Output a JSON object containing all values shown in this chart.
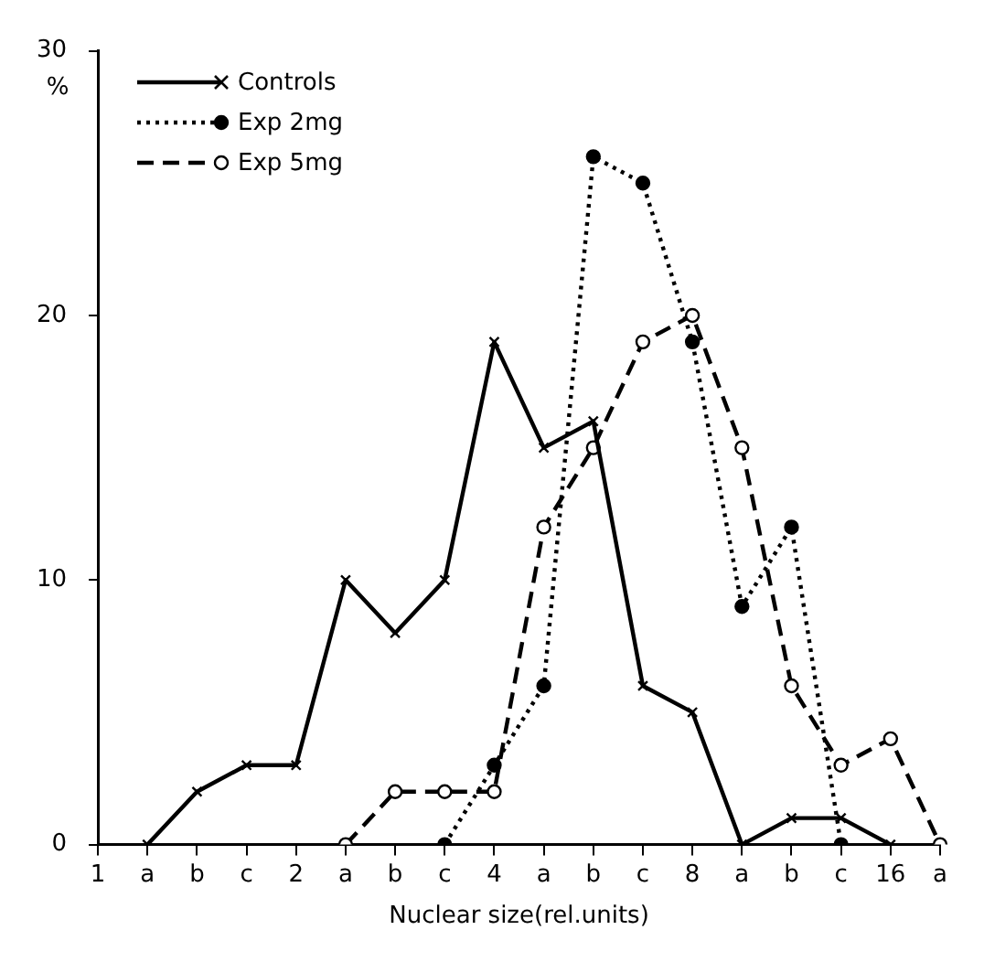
{
  "chart_data": {
    "type": "line",
    "xlabel": "Nuclear size(rel.units)",
    "ylabel": "%",
    "categories": [
      "1",
      "a",
      "b",
      "c",
      "2",
      "a",
      "b",
      "c",
      "4",
      "a",
      "b",
      "c",
      "8",
      "a",
      "b",
      "c",
      "16",
      "a"
    ],
    "series": [
      {
        "name": "Controls",
        "color": "#000000",
        "marker": "cross",
        "line_style": "solid",
        "values": [
          null,
          0,
          2,
          3,
          3,
          10,
          8,
          10,
          19,
          15,
          16,
          6,
          5,
          0,
          1,
          1,
          0,
          null
        ]
      },
      {
        "name": "Exp  2mg",
        "color": "#000000",
        "marker": "circle",
        "line_style": "dotted",
        "values": [
          null,
          null,
          null,
          null,
          null,
          null,
          null,
          0,
          3,
          6,
          26,
          25,
          19,
          9,
          12,
          0,
          null,
          null
        ]
      },
      {
        "name": "Exp  5mg",
        "color": "#000000",
        "marker": "open circle",
        "line_style": "dashed",
        "values": [
          null,
          null,
          null,
          null,
          null,
          0,
          2,
          2,
          2,
          12,
          15,
          19,
          20,
          15,
          6,
          3,
          4,
          0
        ]
      }
    ],
    "ylim": [
      0,
      30
    ],
    "yticks": [
      0,
      10,
      20,
      30
    ],
    "grid": false,
    "legend": "top left"
  }
}
